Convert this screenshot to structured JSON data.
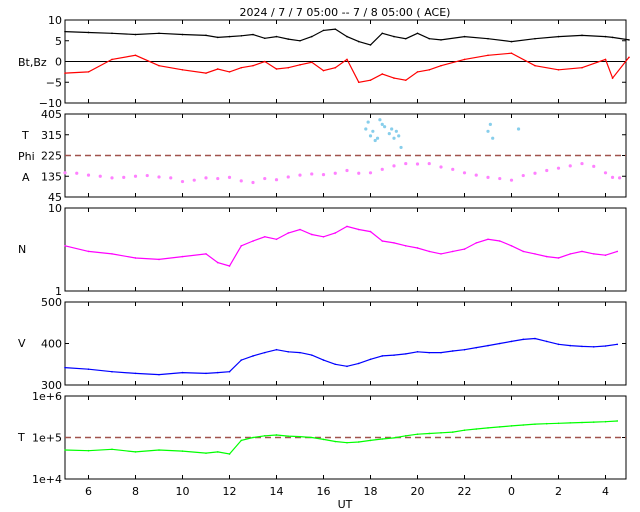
{
  "title": "2024 /  7 /  7   05:00 -- 7 /  8   05:00 ( ACE)",
  "xlabel": "UT",
  "x_tick_labels": [
    "6",
    "8",
    "10",
    "12",
    "14",
    "16",
    "18",
    "20",
    "22",
    "0",
    "2",
    "4"
  ],
  "colors": {
    "bt": "#000000",
    "bz": "#ff0000",
    "theta": "#87ceeb",
    "phi": "#ff80ff",
    "density": "#ff00ff",
    "speed": "#0000ff",
    "temperature": "#00ff00",
    "reference_line": "#a0524d"
  },
  "chart_data": [
    {
      "type": "line",
      "panel": "magnetic_field",
      "ylabel": "Bt,Bz",
      "ylim": [
        -10,
        10
      ],
      "y_tick_labels": [
        "10",
        "5",
        "0",
        "−5",
        "−10"
      ],
      "x_hours_since_start": [
        0,
        1,
        2,
        3,
        4,
        5,
        6,
        6.5,
        7,
        7.5,
        8,
        8.5,
        9,
        9.5,
        10,
        10.5,
        11,
        11.5,
        12,
        12.5,
        13,
        13.5,
        14,
        14.5,
        15,
        15.5,
        16,
        17,
        18,
        19,
        20,
        21,
        22,
        23,
        23.3,
        24
      ],
      "series": [
        {
          "name": "Bt",
          "values": [
            7.2,
            7.0,
            6.8,
            6.5,
            6.8,
            6.5,
            6.3,
            5.8,
            6.0,
            6.2,
            6.5,
            5.6,
            6.0,
            5.4,
            5.0,
            6.0,
            7.5,
            7.8,
            6.0,
            4.8,
            4.0,
            6.8,
            6.0,
            5.5,
            6.8,
            5.5,
            5.2,
            6.0,
            5.5,
            4.8,
            5.5,
            6.0,
            6.3,
            6.0,
            5.8,
            5.2
          ]
        },
        {
          "name": "Bz",
          "values": [
            -2.8,
            -2.5,
            0.5,
            1.5,
            -1.0,
            -2.0,
            -2.8,
            -1.8,
            -2.5,
            -1.5,
            -1.0,
            0.0,
            -1.8,
            -1.5,
            -0.8,
            -0.2,
            -2.2,
            -1.5,
            0.5,
            -5.0,
            -4.5,
            -3.0,
            -4.0,
            -4.5,
            -2.5,
            -2.0,
            -1.0,
            0.5,
            1.5,
            2.0,
            -1.0,
            -2.0,
            -1.5,
            0.5,
            -4.0,
            1.0
          ]
        }
      ]
    },
    {
      "type": "scatter",
      "panel": "angles",
      "ylabels": [
        "T",
        "Phi",
        "A"
      ],
      "ylim": [
        45,
        405
      ],
      "y_tick_labels": [
        "405",
        "315",
        "225",
        "135",
        "45"
      ],
      "reference_line": 225,
      "series": [
        {
          "name": "Theta",
          "x": [
            12.8,
            12.9,
            13.0,
            13.1,
            13.2,
            13.3,
            13.4,
            13.5,
            13.6,
            13.8,
            13.9,
            14.0,
            14.1,
            14.2,
            14.3,
            18.0,
            18.1,
            18.2,
            19.3
          ],
          "values": [
            340,
            370,
            310,
            330,
            290,
            300,
            380,
            360,
            350,
            320,
            340,
            300,
            330,
            310,
            260,
            330,
            360,
            300,
            340
          ]
        },
        {
          "name": "Phi",
          "x": [
            0,
            0.5,
            1,
            1.5,
            2,
            2.5,
            3,
            3.5,
            4,
            4.5,
            5,
            5.5,
            6,
            6.5,
            7,
            7.5,
            8,
            8.5,
            9,
            9.5,
            10,
            10.5,
            11,
            11.5,
            12,
            12.5,
            13,
            13.5,
            14,
            14.5,
            15,
            15.5,
            16,
            16.5,
            17,
            17.5,
            18,
            18.5,
            19,
            19.5,
            20,
            20.5,
            21,
            21.5,
            22,
            22.5,
            23,
            23.3,
            23.6
          ],
          "values": [
            150,
            148,
            140,
            135,
            128,
            130,
            135,
            138,
            132,
            128,
            112,
            118,
            128,
            125,
            130,
            115,
            108,
            125,
            120,
            132,
            140,
            145,
            142,
            148,
            160,
            148,
            150,
            165,
            180,
            190,
            188,
            190,
            175,
            165,
            150,
            140,
            130,
            125,
            118,
            138,
            148,
            160,
            170,
            180,
            190,
            178,
            150,
            130,
            128
          ]
        }
      ]
    },
    {
      "type": "line",
      "panel": "density",
      "ylabel": "N",
      "scale": "log",
      "ylim": [
        1,
        10
      ],
      "y_tick_labels": [
        "10",
        "1"
      ],
      "x_hours_since_start": [
        0,
        1,
        2,
        3,
        4,
        5,
        6,
        6.5,
        7,
        7.5,
        8,
        8.5,
        9,
        9.5,
        10,
        10.5,
        11,
        11.5,
        12,
        12.5,
        13,
        13.5,
        14,
        14.5,
        15,
        15.5,
        16,
        16.5,
        17,
        17.5,
        18,
        18.5,
        19,
        19.5,
        20,
        20.5,
        21,
        21.5,
        22,
        22.5,
        23,
        23.5
      ],
      "series": [
        {
          "name": "N",
          "values": [
            3.5,
            3.0,
            2.8,
            2.5,
            2.4,
            2.6,
            2.8,
            2.2,
            2.0,
            3.5,
            4.0,
            4.5,
            4.2,
            5.0,
            5.5,
            4.8,
            4.5,
            5.0,
            6.0,
            5.5,
            5.2,
            4.0,
            3.8,
            3.5,
            3.3,
            3.0,
            2.8,
            3.0,
            3.2,
            3.8,
            4.2,
            4.0,
            3.5,
            3.0,
            2.8,
            2.6,
            2.5,
            2.8,
            3.0,
            2.8,
            2.7,
            3.0
          ]
        }
      ]
    },
    {
      "type": "line",
      "panel": "speed",
      "ylabel": "V",
      "ylim": [
        300,
        500
      ],
      "y_tick_labels": [
        "500",
        "400",
        "300"
      ],
      "x_hours_since_start": [
        0,
        1,
        2,
        3,
        4,
        5,
        6,
        6.5,
        7,
        7.5,
        8,
        8.5,
        9,
        9.5,
        10,
        10.5,
        11,
        11.5,
        12,
        12.5,
        13,
        13.5,
        14,
        14.5,
        15,
        15.5,
        16,
        16.5,
        17,
        17.5,
        18,
        18.5,
        19,
        19.5,
        20,
        20.5,
        21,
        21.5,
        22,
        22.5,
        23,
        23.5
      ],
      "series": [
        {
          "name": "V",
          "values": [
            342,
            338,
            332,
            328,
            325,
            330,
            328,
            330,
            332,
            360,
            370,
            378,
            385,
            380,
            378,
            372,
            360,
            350,
            345,
            352,
            362,
            370,
            372,
            375,
            380,
            378,
            378,
            382,
            385,
            390,
            395,
            400,
            405,
            410,
            412,
            405,
            398,
            395,
            393,
            392,
            394,
            398
          ]
        }
      ]
    },
    {
      "type": "line",
      "panel": "temperature",
      "ylabel": "T",
      "scale": "log",
      "ylim": [
        10000,
        1000000
      ],
      "y_tick_labels": [
        "1e+6",
        "1e+5",
        "1e+4"
      ],
      "reference_line": 100000,
      "x_hours_since_start": [
        0,
        1,
        2,
        3,
        4,
        5,
        6,
        6.5,
        7,
        7.5,
        8,
        8.5,
        9,
        9.5,
        10,
        10.5,
        11,
        11.5,
        12,
        12.5,
        13,
        13.5,
        14,
        14.5,
        15,
        15.5,
        16,
        16.5,
        17,
        17.5,
        18,
        18.5,
        19,
        19.5,
        20,
        20.5,
        21,
        21.5,
        22,
        22.5,
        23,
        23.5
      ],
      "series": [
        {
          "name": "T",
          "values": [
            50000,
            48000,
            52000,
            45000,
            50000,
            47000,
            42000,
            45000,
            40000,
            85000,
            100000,
            110000,
            115000,
            108000,
            105000,
            100000,
            90000,
            80000,
            75000,
            78000,
            85000,
            92000,
            98000,
            110000,
            120000,
            125000,
            130000,
            135000,
            150000,
            160000,
            170000,
            180000,
            190000,
            200000,
            210000,
            215000,
            220000,
            225000,
            230000,
            235000,
            240000,
            250000
          ]
        }
      ]
    }
  ]
}
